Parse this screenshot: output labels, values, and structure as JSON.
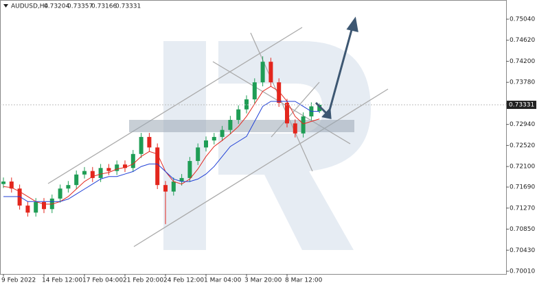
{
  "chart_data": {
    "type": "candlestick",
    "symbol": "AUDUSD,H4",
    "header_ohlc": [
      0.73204,
      0.73357,
      0.73166,
      0.73331
    ],
    "categories": [
      "9 Feb 2022",
      null,
      null,
      null,
      null,
      "14 Feb 12:00",
      null,
      null,
      null,
      null,
      "17 Feb 04:00",
      null,
      null,
      null,
      null,
      "21 Feb 20:00",
      null,
      null,
      null,
      null,
      "24 Feb 12:00",
      null,
      null,
      null,
      null,
      "1 Mar 04:00",
      null,
      null,
      null,
      null,
      "3 Mar 20:00",
      null,
      null,
      null,
      null,
      "8 Mar 12:00",
      null,
      null,
      null,
      null
    ],
    "open": [
      0.7175,
      0.718,
      0.7166,
      0.7132,
      0.7118,
      0.7139,
      0.7125,
      0.7146,
      0.7166,
      0.7173,
      0.7194,
      0.7201,
      0.7187,
      0.7207,
      0.7201,
      0.7214,
      0.7207,
      0.7235,
      0.7269,
      0.7248,
      0.7173,
      0.716,
      0.718,
      0.7187,
      0.7221,
      0.7248,
      0.7262,
      0.7269,
      0.7283,
      0.7303,
      0.7324,
      0.7344,
      0.7378,
      0.7419,
      0.7378,
      0.7337,
      0.7296,
      0.7276,
      0.731,
      0.73204
    ],
    "high": [
      0.7188,
      0.7188,
      0.7174,
      0.714,
      0.7147,
      0.7147,
      0.7154,
      0.7174,
      0.7181,
      0.7202,
      0.7209,
      0.7209,
      0.7215,
      0.7215,
      0.7222,
      0.7222,
      0.7243,
      0.7277,
      0.7277,
      0.7256,
      0.7181,
      0.7188,
      0.7195,
      0.7229,
      0.7256,
      0.727,
      0.7277,
      0.7291,
      0.7311,
      0.7332,
      0.7352,
      0.7386,
      0.743,
      0.7427,
      0.7386,
      0.7345,
      0.7304,
      0.7318,
      0.7338,
      0.73357
    ],
    "low": [
      0.7167,
      0.7158,
      0.7124,
      0.711,
      0.711,
      0.7117,
      0.7117,
      0.7138,
      0.7158,
      0.7165,
      0.7186,
      0.7179,
      0.7179,
      0.7193,
      0.7193,
      0.7199,
      0.7199,
      0.7227,
      0.724,
      0.7165,
      0.7095,
      0.7152,
      0.7172,
      0.7179,
      0.7213,
      0.724,
      0.7254,
      0.7261,
      0.7275,
      0.7295,
      0.7316,
      0.7336,
      0.737,
      0.737,
      0.7329,
      0.7288,
      0.7268,
      0.7268,
      0.7302,
      0.73166
    ],
    "close": [
      0.718,
      0.7166,
      0.7132,
      0.7118,
      0.7139,
      0.7125,
      0.7146,
      0.7166,
      0.7173,
      0.7194,
      0.7201,
      0.7187,
      0.7207,
      0.7201,
      0.7214,
      0.7207,
      0.7235,
      0.7269,
      0.7248,
      0.7173,
      0.716,
      0.718,
      0.7187,
      0.7221,
      0.7248,
      0.7262,
      0.7269,
      0.7283,
      0.7303,
      0.7324,
      0.7344,
      0.7378,
      0.7419,
      0.7378,
      0.7337,
      0.7296,
      0.7276,
      0.731,
      0.733,
      0.73331
    ],
    "up_color": "#1f9d55",
    "down_color": "#e3261d",
    "lines": [
      {
        "color": "#e3261d",
        "values": [
          0.717,
          0.7168,
          0.716,
          0.715,
          0.714,
          0.7135,
          0.7135,
          0.714,
          0.715,
          0.7165,
          0.718,
          0.719,
          0.7195,
          0.7198,
          0.7205,
          0.7208,
          0.7215,
          0.723,
          0.724,
          0.7235,
          0.72,
          0.718,
          0.7175,
          0.7185,
          0.7205,
          0.723,
          0.725,
          0.7262,
          0.7275,
          0.729,
          0.731,
          0.7335,
          0.736,
          0.737,
          0.736,
          0.734,
          0.731,
          0.7295,
          0.73,
          0.7305
        ]
      },
      {
        "color": "#1f3fd6",
        "values": [
          0.715,
          0.715,
          0.715,
          0.714,
          0.714,
          0.714,
          0.714,
          0.714,
          0.7145,
          0.7155,
          0.7165,
          0.7175,
          0.7185,
          0.719,
          0.719,
          0.7195,
          0.72,
          0.721,
          0.7215,
          0.7215,
          0.72,
          0.7185,
          0.718,
          0.718,
          0.7185,
          0.7195,
          0.721,
          0.723,
          0.725,
          0.726,
          0.727,
          0.73,
          0.733,
          0.734,
          0.734,
          0.734,
          0.734,
          0.733,
          0.732,
          0.732
        ]
      }
    ],
    "last_price": 0.73331,
    "ylim": [
      0.69955,
      0.75423
    ],
    "yticks": [
      {
        "value": 0.7504,
        "label": "0.75040"
      },
      {
        "value": 0.7462,
        "label": "0.74620"
      },
      {
        "value": 0.742,
        "label": "0.74200"
      },
      {
        "value": 0.7378,
        "label": "0.73780"
      },
      {
        "value": 0.7336,
        "label": "0.73360"
      },
      {
        "value": 0.7294,
        "label": "0.72940"
      },
      {
        "value": 0.7252,
        "label": "0.72520"
      },
      {
        "value": 0.721,
        "label": "0.72100"
      },
      {
        "value": 0.7169,
        "label": "0.71690"
      },
      {
        "value": 0.7127,
        "label": "0.71270"
      },
      {
        "value": 0.7085,
        "label": "0.70850"
      },
      {
        "value": 0.7043,
        "label": "0.70430"
      },
      {
        "value": 0.7001,
        "label": "0.70010"
      }
    ]
  }
}
